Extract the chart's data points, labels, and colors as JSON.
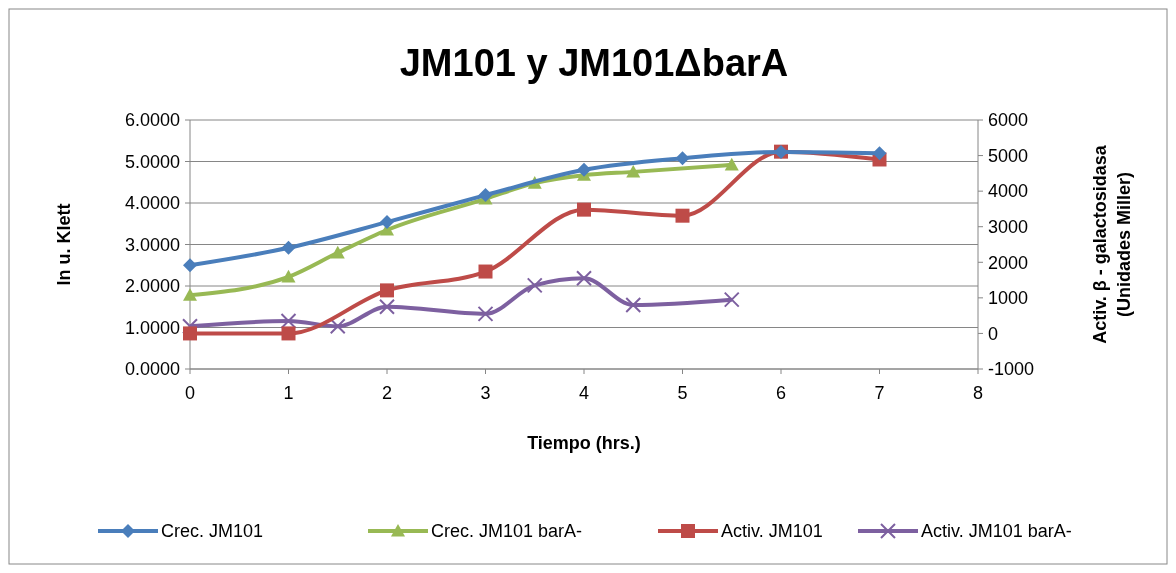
{
  "chart_data": {
    "type": "line",
    "title": "JM101 y  JM101ΔbarA",
    "xlabel": "Tiempo (hrs.)",
    "ylabel": "ln u. Klett",
    "y2label": "Activ. β - galactosidasa\n(Unidades Miller)",
    "xlim": [
      0,
      8
    ],
    "xticks": [
      0,
      1,
      2,
      3,
      4,
      5,
      6,
      7,
      8
    ],
    "ylim": [
      0,
      6
    ],
    "yticks": [
      {
        "value": 0,
        "label": "0.0000"
      },
      {
        "value": 1,
        "label": "1.0000"
      },
      {
        "value": 2,
        "label": "2.0000"
      },
      {
        "value": 3,
        "label": "3.0000"
      },
      {
        "value": 4,
        "label": "4.0000"
      },
      {
        "value": 5,
        "label": "5.0000"
      },
      {
        "value": 6,
        "label": "6.0000"
      }
    ],
    "y2lim": [
      -1000,
      6000
    ],
    "y2ticks": [
      -1000,
      0,
      1000,
      2000,
      3000,
      4000,
      5000,
      6000
    ],
    "grid": "y",
    "legend": "bottom",
    "series": [
      {
        "name": "Crec. JM101",
        "color": "#4a7ebb",
        "marker": "diamond",
        "x": [
          0,
          1,
          2,
          3,
          4,
          5,
          6,
          7
        ],
        "values": [
          2.5,
          2.92,
          3.54,
          4.19,
          4.8,
          5.08,
          5.23,
          5.2
        ]
      },
      {
        "name": "Crec. JM101 barA-",
        "color": "#98b954",
        "marker": "triangle",
        "x": [
          0,
          1,
          1.5,
          2,
          3,
          3.5,
          4,
          4.5,
          5.5
        ],
        "values": [
          1.78,
          2.22,
          2.8,
          3.35,
          4.1,
          4.48,
          4.67,
          4.75,
          4.92
        ]
      },
      {
        "name": "Activ. JM101",
        "color": "#be4b48",
        "marker": "square",
        "axis": "y2",
        "x": [
          0,
          1,
          2,
          3,
          4,
          5,
          6,
          7
        ],
        "values": [
          0,
          0,
          1210,
          1740,
          3480,
          3310,
          5110,
          4890
        ]
      },
      {
        "name": "Activ. JM101 barA-",
        "color": "#7d60a0",
        "marker": "cross",
        "axis": "y2",
        "x": [
          0,
          1,
          1.5,
          2,
          3,
          3.5,
          4,
          4.5,
          5.5
        ],
        "values": [
          200,
          350,
          200,
          750,
          550,
          1350,
          1550,
          800,
          950
        ]
      }
    ]
  }
}
